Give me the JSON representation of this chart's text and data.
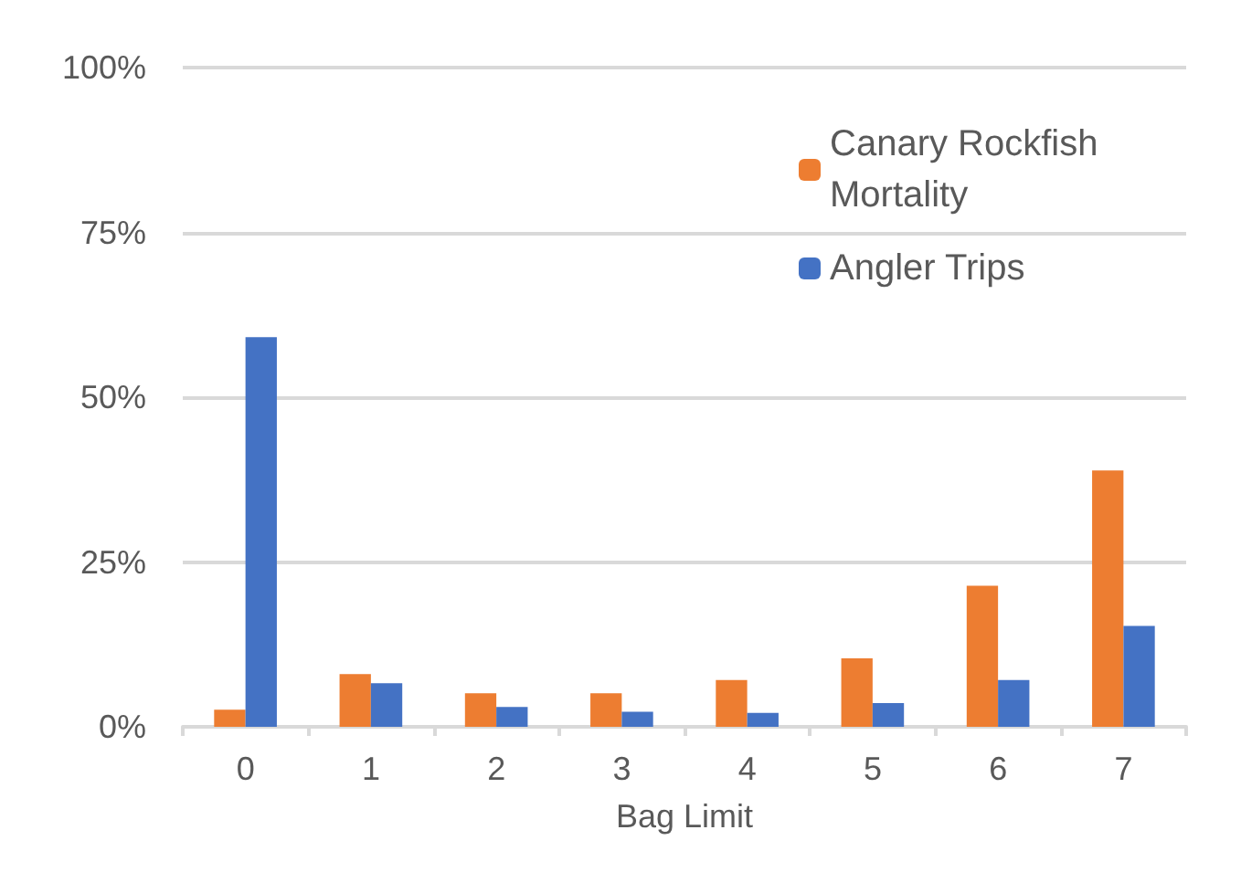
{
  "chart_data": {
    "type": "bar",
    "xlabel": "Bag Limit",
    "categories": [
      "0",
      "1",
      "2",
      "3",
      "4",
      "5",
      "6",
      "7"
    ],
    "series": [
      {
        "name": "Canary Rockfish Mortality",
        "color": "#ed7d31",
        "values": [
          2.6,
          8.0,
          5.1,
          5.1,
          7.1,
          10.4,
          21.4,
          38.9
        ]
      },
      {
        "name": "Angler Trips",
        "color": "#4472c4",
        "values": [
          59.1,
          6.6,
          3.0,
          2.3,
          2.1,
          3.6,
          7.1,
          15.3
        ]
      }
    ],
    "ylim": [
      0,
      100
    ],
    "yticks": [
      {
        "value": 0,
        "label": "0%"
      },
      {
        "value": 25,
        "label": "25%"
      },
      {
        "value": 50,
        "label": "50%"
      },
      {
        "value": 75,
        "label": "75%"
      },
      {
        "value": 100,
        "label": "100%"
      }
    ],
    "grid": "y",
    "legend": "top right"
  }
}
